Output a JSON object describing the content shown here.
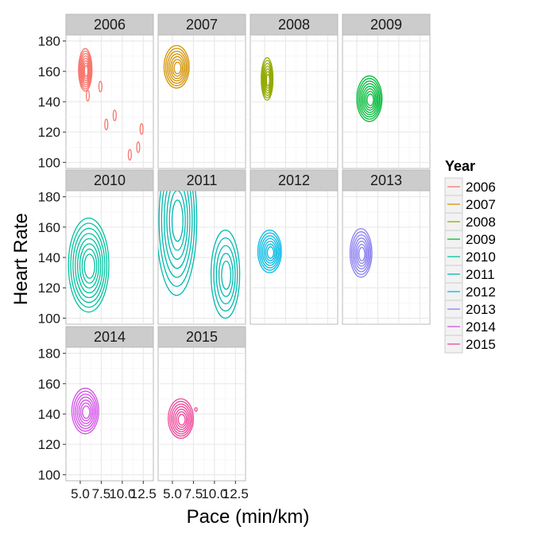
{
  "chart_data": {
    "type": "contour",
    "facet_by": "Year",
    "xlabel": "Pace (min/km)",
    "ylabel": "Heart Rate",
    "x_ticks": [
      5.0,
      7.5,
      10.0,
      12.5
    ],
    "x_tick_labels": [
      "5.0",
      "7.5",
      "10.0",
      "12.5"
    ],
    "xlim": [
      3.3,
      13.7
    ],
    "y_ticks": [
      100,
      120,
      140,
      160,
      180
    ],
    "y_tick_labels": [
      "100",
      "120",
      "140",
      "160",
      "180"
    ],
    "ylim": [
      96,
      184
    ],
    "grid": true,
    "legend": {
      "title": "Year",
      "position": "right"
    },
    "panels": [
      {
        "label": "2006",
        "color": "#F8766D",
        "groups": [
          {
            "cx": 5.6,
            "cy": 161,
            "rx": 0.8,
            "ry": 14,
            "levels": 8
          },
          {
            "cx": 5.9,
            "cy": 144,
            "rx": 0.18,
            "ry": 3.5,
            "levels": 1
          },
          {
            "cx": 7.4,
            "cy": 150,
            "rx": 0.18,
            "ry": 3.5,
            "levels": 1
          },
          {
            "cx": 8.1,
            "cy": 125,
            "rx": 0.18,
            "ry": 3.5,
            "levels": 1
          },
          {
            "cx": 9.1,
            "cy": 131,
            "rx": 0.18,
            "ry": 3.5,
            "levels": 1
          },
          {
            "cx": 10.9,
            "cy": 105,
            "rx": 0.18,
            "ry": 3.5,
            "levels": 1
          },
          {
            "cx": 11.9,
            "cy": 110,
            "rx": 0.18,
            "ry": 3.5,
            "levels": 1
          },
          {
            "cx": 12.3,
            "cy": 122,
            "rx": 0.18,
            "ry": 3.5,
            "levels": 1
          }
        ]
      },
      {
        "label": "2007",
        "color": "#D39200",
        "groups": [
          {
            "cx": 5.5,
            "cy": 163,
            "rx": 1.5,
            "ry": 14,
            "levels": 7
          }
        ]
      },
      {
        "label": "2008",
        "color": "#93AA00",
        "groups": [
          {
            "cx": 5.3,
            "cy": 155,
            "rx": 0.7,
            "ry": 14,
            "levels": 7
          }
        ]
      },
      {
        "label": "2009",
        "color": "#00BA38",
        "groups": [
          {
            "cx": 6.5,
            "cy": 142,
            "rx": 1.5,
            "ry": 15,
            "levels": 8
          }
        ]
      },
      {
        "label": "2010",
        "color": "#00C19F",
        "groups": [
          {
            "cx": 6.0,
            "cy": 135,
            "rx": 2.4,
            "ry": 31,
            "levels": 8
          }
        ]
      },
      {
        "label": "2011",
        "color": "#00B9E3",
        "display_color": "#00B9B0",
        "groups": [
          {
            "cx": 5.5,
            "cy": 165,
            "rx": 2.4,
            "ry": 50,
            "levels": 7
          },
          {
            "cx": 11.3,
            "cy": 129,
            "rx": 1.7,
            "ry": 29,
            "levels": 5
          }
        ]
      },
      {
        "label": "2012",
        "color": "#00B9E3",
        "groups": [
          {
            "cx": 5.6,
            "cy": 144,
            "rx": 1.4,
            "ry": 14,
            "levels": 7
          }
        ]
      },
      {
        "label": "2013",
        "color": "#619CFF",
        "display_color": "#8B7FF0",
        "groups": [
          {
            "cx": 5.5,
            "cy": 143,
            "rx": 1.3,
            "ry": 16,
            "levels": 7
          }
        ]
      },
      {
        "label": "2014",
        "color": "#DB72FB",
        "display_color": "#D34FE8",
        "groups": [
          {
            "cx": 5.6,
            "cy": 142,
            "rx": 1.6,
            "ry": 15,
            "levels": 7
          }
        ]
      },
      {
        "label": "2015",
        "color": "#FF61C3",
        "display_color": "#F0469A",
        "groups": [
          {
            "cx": 6.0,
            "cy": 137,
            "rx": 1.5,
            "ry": 13,
            "levels": 7
          },
          {
            "cx": 7.8,
            "cy": 143,
            "rx": 0.15,
            "ry": 1.2,
            "levels": 1
          }
        ]
      }
    ]
  }
}
